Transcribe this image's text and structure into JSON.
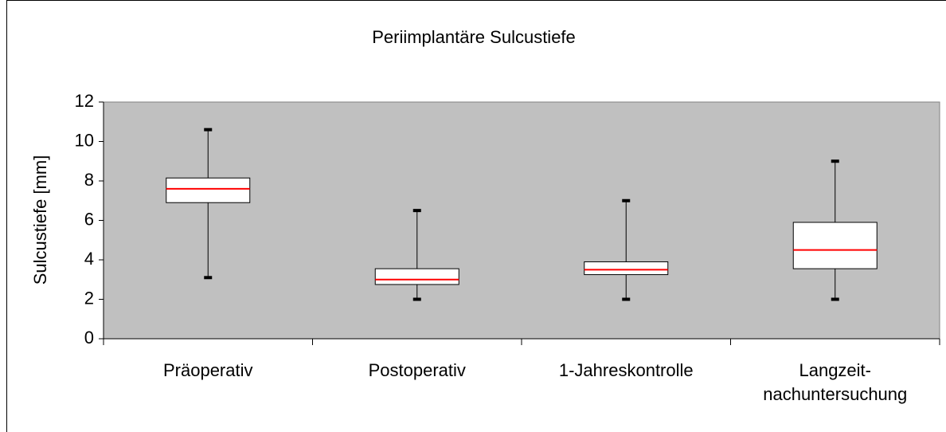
{
  "chart_data": {
    "type": "box",
    "title": "Periimplantäre Sulcustiefe",
    "y_label": "Sulcustiefe [mm]",
    "categories": [
      [
        "Präoperativ"
      ],
      [
        "Postoperativ"
      ],
      [
        "1-Jahreskontrolle"
      ],
      [
        "Langzeit-",
        "nachuntersuchung"
      ]
    ],
    "boxes": [
      {
        "min": 3.1,
        "q1": 6.9,
        "median": 7.6,
        "q3": 8.15,
        "max": 10.6
      },
      {
        "min": 2,
        "q1": 2.75,
        "median": 3,
        "q3": 3.55,
        "max": 6.5
      },
      {
        "min": 2,
        "q1": 3.25,
        "median": 3.5,
        "q3": 3.9,
        "max": 7
      },
      {
        "min": 2,
        "q1": 3.55,
        "median": 4.5,
        "q3": 5.9,
        "max": 9
      }
    ],
    "ylim": [
      0,
      12
    ],
    "yticks": [
      0,
      2,
      4,
      6,
      8,
      10,
      12
    ],
    "plot_color": "#c0c0c0",
    "box_color": "#ffffff",
    "median_color": "#ff0000"
  }
}
